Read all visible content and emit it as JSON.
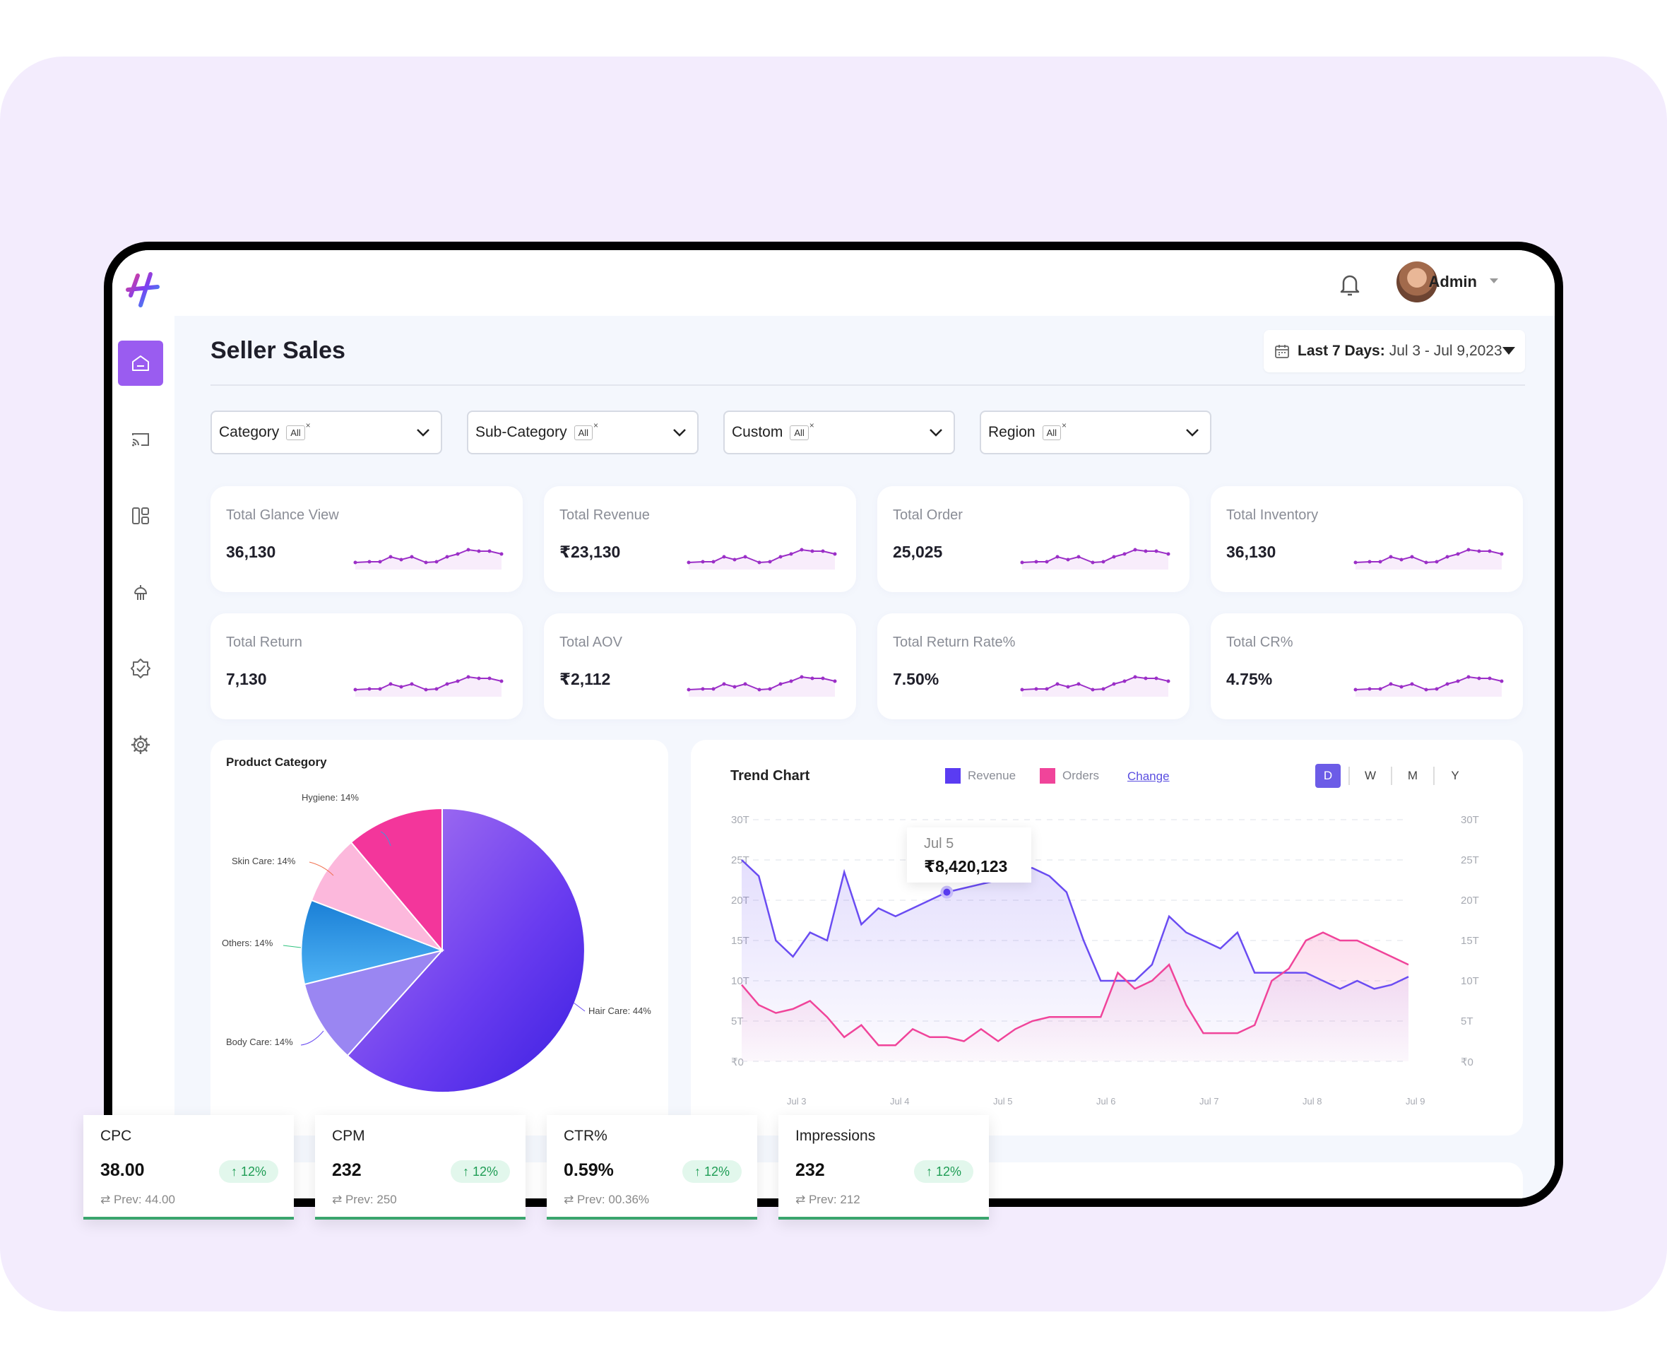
{
  "user": {
    "name": "Admin"
  },
  "page": {
    "title": "Seller Sales"
  },
  "date_range": {
    "label": "Last 7 Days:",
    "value": "Jul 3 - Jul 9,2023"
  },
  "filters": [
    {
      "label": "Category",
      "chip": "All"
    },
    {
      "label": "Sub-Category",
      "chip": "All"
    },
    {
      "label": "Custom",
      "chip": "All"
    },
    {
      "label": "Region",
      "chip": "All"
    }
  ],
  "chip_close": "×",
  "kpis": [
    {
      "label": "Total Glance View",
      "value": "36,130"
    },
    {
      "label": "Total Revenue",
      "value": "₹23,130"
    },
    {
      "label": "Total Order",
      "value": "25,025"
    },
    {
      "label": "Total Inventory",
      "value": "36,130"
    },
    {
      "label": "Total Return",
      "value": "7,130"
    },
    {
      "label": "Total AOV",
      "value": "₹2,112"
    },
    {
      "label": "Total Return Rate%",
      "value": "7.50%"
    },
    {
      "label": "Total CR%",
      "value": "4.75%"
    }
  ],
  "product_category": {
    "title": "Product Category",
    "labels": [
      "Hygiene: 14%",
      "Skin Care: 14%",
      "Others: 14%",
      "Body Care: 14%",
      "Hair Care: 44%"
    ]
  },
  "trend": {
    "title": "Trend Chart",
    "legend": [
      "Revenue",
      "Orders"
    ],
    "change": "Change",
    "periods": [
      "D",
      "W",
      "M",
      "Y"
    ],
    "y_ticks": [
      "30T",
      "25T",
      "20T",
      "15T",
      "10T",
      "5T",
      "₹0"
    ],
    "x_ticks": [
      "Jul 3",
      "Jul 4",
      "Jul 5",
      "Jul 6",
      "Jul 7",
      "Jul 8",
      "Jul 9"
    ],
    "tooltip": {
      "date": "Jul 5",
      "value": "₹8,420,123"
    },
    "colors": {
      "revenue": "#6a4cf2",
      "orders": "#f0449a"
    }
  },
  "chart_data": {
    "type": "line",
    "title": "Trend Chart",
    "ylim": [
      0,
      30
    ],
    "y_unit": "T",
    "x_range": [
      0,
      49
    ],
    "series": [
      {
        "name": "Revenue",
        "values": [
          25,
          23,
          15,
          13,
          16,
          15,
          23.5,
          17,
          19,
          18,
          19,
          20,
          21,
          21.5,
          22,
          22.5,
          24,
          24,
          23,
          21,
          15,
          10,
          10,
          10,
          12,
          18,
          16,
          15,
          14,
          16,
          11,
          11,
          11,
          11,
          10,
          9,
          10,
          9,
          9.5,
          10.5
        ]
      },
      {
        "name": "Orders",
        "values": [
          9.5,
          7,
          6,
          6.5,
          7.5,
          5.5,
          3,
          4.5,
          2,
          2,
          4,
          3,
          3,
          2.5,
          4,
          2.5,
          4,
          5,
          5.5,
          5.5,
          5.5,
          5.5,
          11,
          9,
          10,
          12,
          7,
          3.5,
          3.5,
          3.5,
          4.5,
          10,
          11.5,
          15,
          16,
          15,
          15,
          14,
          13,
          12
        ]
      }
    ]
  },
  "metrics": [
    {
      "label": "CPC",
      "value": "38.00",
      "change": "↑ 12%",
      "prev": "⇄ Prev: 44.00"
    },
    {
      "label": "CPM",
      "value": "232",
      "change": "↑ 12%",
      "prev": "⇄ Prev: 250"
    },
    {
      "label": "CTR%",
      "value": "0.59%",
      "change": "↑ 12%",
      "prev": "⇄ Prev: 00.36%"
    },
    {
      "label": "Impressions",
      "value": "232",
      "change": "↑ 12%",
      "prev": "⇄ Prev: 212"
    }
  ]
}
